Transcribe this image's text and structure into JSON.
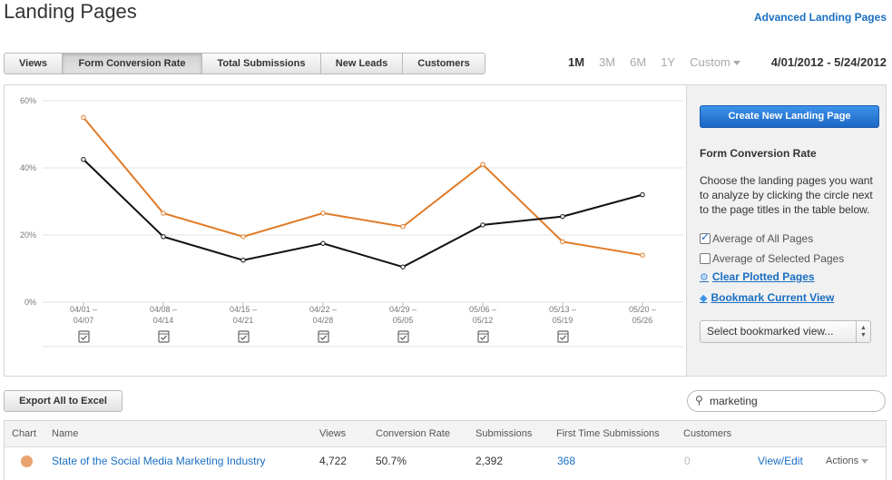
{
  "header": {
    "title": "Landing Pages",
    "advanced_link": "Advanced Landing Pages"
  },
  "tabs": [
    {
      "label": "Views",
      "active": false
    },
    {
      "label": "Form Conversion Rate",
      "active": true
    },
    {
      "label": "Total Submissions",
      "active": false
    },
    {
      "label": "New Leads",
      "active": false
    },
    {
      "label": "Customers",
      "active": false
    }
  ],
  "ranges": {
    "items": [
      "1M",
      "3M",
      "6M",
      "1Y"
    ],
    "active": "1M",
    "custom": "Custom",
    "date_range": "4/01/2012 - 5/24/2012"
  },
  "chart_data": {
    "type": "line",
    "categories": [
      "04/01 –\n04/07",
      "04/08 –\n04/14",
      "04/15 –\n04/21",
      "04/22 –\n04/28",
      "04/29 –\n05/05",
      "05/06 –\n05/12",
      "05/13 –\n05/19",
      "05/20 –\n05/26"
    ],
    "series": [
      {
        "values": [
          55,
          26.5,
          19.5,
          26.5,
          22.5,
          41,
          18,
          14
        ],
        "color": "#e07b28"
      },
      {
        "values": [
          42.5,
          19.5,
          12.5,
          17.5,
          10.5,
          23,
          25.5,
          32
        ],
        "color": "#111111"
      }
    ],
    "y_ticks": [
      "0%",
      "20%",
      "40%",
      "60%"
    ],
    "ylim": [
      0,
      60
    ],
    "grid": true,
    "event_markers": [
      0,
      1,
      2,
      3,
      4,
      5,
      6
    ]
  },
  "sidebar": {
    "create_button": "Create New Landing Page",
    "title": "Form Conversion Rate",
    "description": "Choose the landing pages you want to analyze by clicking the circle next to the page titles in the table below.",
    "avg_all": {
      "label": "Average of All Pages",
      "checked": true
    },
    "avg_selected": {
      "label": "Average of Selected Pages",
      "checked": false
    },
    "clear_link": "Clear Plotted Pages",
    "bookmark_link": "Bookmark Current View",
    "select_placeholder": "Select bookmarked view..."
  },
  "toolbar": {
    "export_label": "Export All to Excel",
    "search_value": "marketing"
  },
  "table": {
    "headers": [
      "Chart",
      "Name",
      "Views",
      "Conversion Rate",
      "Submissions",
      "First Time Submissions",
      "Customers"
    ],
    "rows": [
      {
        "name": "State of the Social Media Marketing Industry",
        "views": "4,722",
        "conversion_rate": "50.7%",
        "submissions": "2,392",
        "first_time": "368",
        "customers": "0",
        "view_edit": "View/Edit",
        "actions": "Actions"
      }
    ]
  }
}
